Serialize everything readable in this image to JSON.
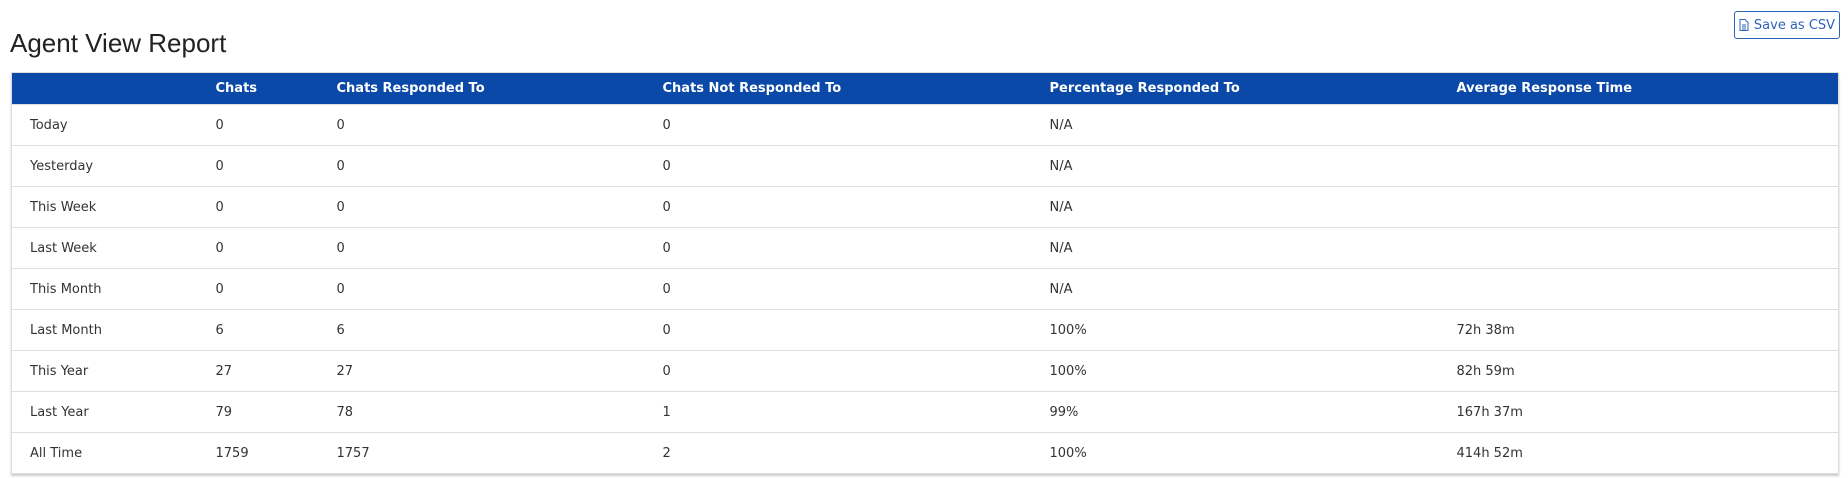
{
  "header": {
    "title": "Agent View Report",
    "button": "Save as CSV"
  },
  "table": {
    "columns": [
      "Chats",
      "Chats Responded To",
      "Chats Not Responded To",
      "Percentage Responded To",
      "Average Response Time"
    ],
    "rows": [
      [
        "Today",
        "0",
        "0",
        "0",
        "N/A"
      ],
      [
        "Yesterday",
        "0",
        "0",
        "0",
        "N/A"
      ],
      [
        "This Week",
        "0",
        "0",
        "0",
        "N/A"
      ],
      [
        "Last Week",
        "0",
        "0",
        "0",
        "N/A"
      ],
      [
        "This Month",
        "0",
        "0",
        "0",
        "N/A"
      ],
      [
        "Last Month",
        "6",
        "6",
        "0",
        "100%",
        "72h 38m"
      ],
      [
        "This Year",
        "27",
        "27",
        "0",
        "100%",
        "82h 59m"
      ],
      [
        "Last Year",
        "79",
        "78",
        "1",
        "99%",
        "167h 37m"
      ],
      [
        "All Time",
        "1759",
        "1757",
        "2",
        "100%",
        "414h 52m"
      ]
    ]
  }
}
